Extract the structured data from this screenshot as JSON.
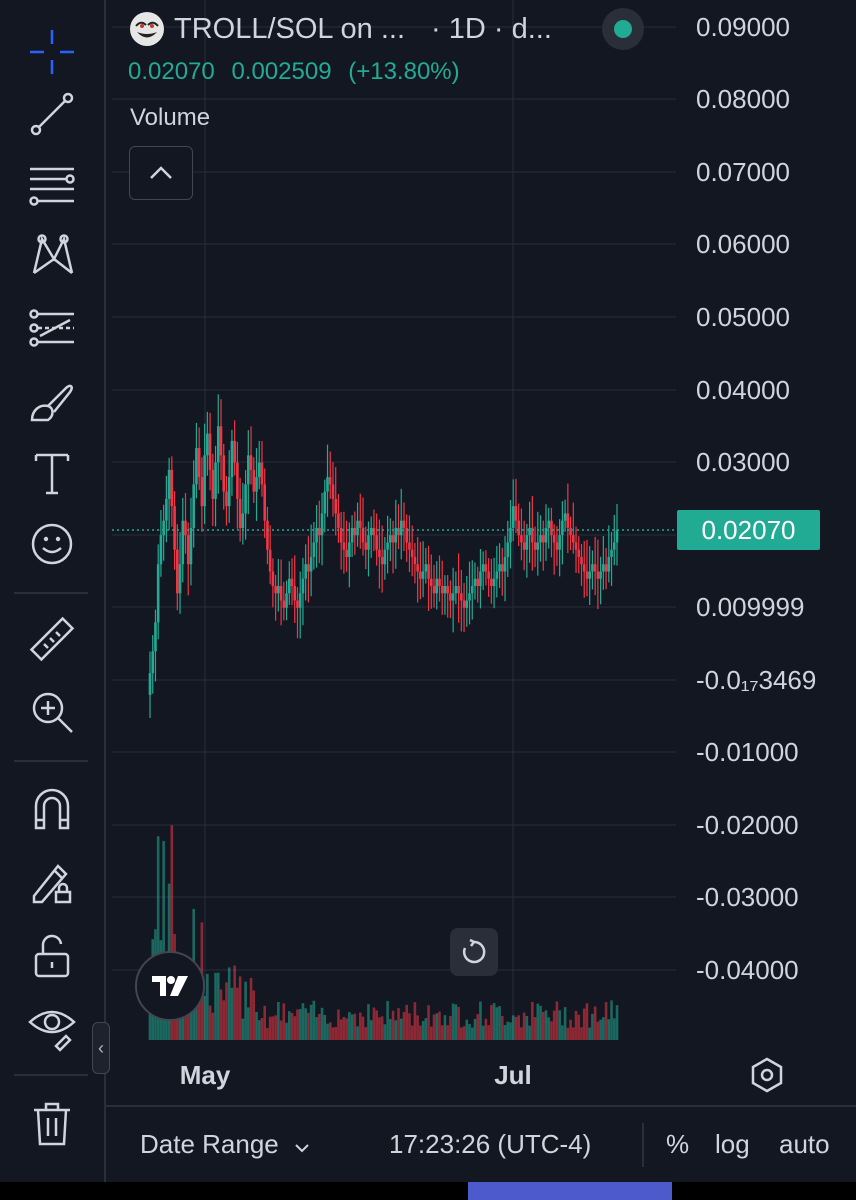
{
  "header": {
    "symbol": "TROLL/SOL on ...",
    "interval": "· 1D · d...",
    "close": "0.02070",
    "change": "0.002509",
    "change_pct": "(+13.80%)",
    "volume_label": "Volume"
  },
  "price_axis": {
    "ticks": [
      "0.09000",
      "0.08000",
      "0.07000",
      "0.06000",
      "0.05000",
      "0.04000",
      "0.03000",
      "0.009999",
      "-0.0₁₇3469",
      "-0.01000",
      "-0.02000",
      "-0.03000",
      "-0.04000"
    ],
    "last_price_label": "0.02070"
  },
  "time_axis": {
    "ticks": [
      "May",
      "Jul"
    ]
  },
  "bottom_bar": {
    "date_range": "Date Range",
    "time": "17:23:26 (UTC-4)",
    "percent": "%",
    "log": "log",
    "auto": "auto"
  },
  "toolbar": {
    "tools": [
      "crosshair-icon",
      "trend-line-icon",
      "fib-retracement-icon",
      "xabcd-pattern-icon",
      "forecast-icon",
      "brush-icon",
      "text-icon",
      "emoji-icon",
      "ruler-icon",
      "zoom-in-icon",
      "magnet-icon",
      "lock-drawing-icon",
      "lock-icon",
      "eye-icon",
      "trash-icon"
    ]
  },
  "colors": {
    "up": "#22ab94",
    "down": "#f23645",
    "bg": "#131722",
    "grid": "#2a2e39",
    "accent": "#2962ff"
  },
  "chart_data": {
    "type": "candlestick",
    "title": "TROLL/SOL",
    "interval": "1D",
    "ylim": [
      -0.045,
      0.092
    ],
    "x_ticks": [
      "May",
      "Jul"
    ],
    "last_price": 0.0207,
    "closes": [
      0.001,
      0.004,
      0.008,
      0.016,
      0.02,
      0.022,
      0.025,
      0.029,
      0.024,
      0.018,
      0.012,
      0.016,
      0.022,
      0.02,
      0.016,
      0.021,
      0.027,
      0.032,
      0.028,
      0.024,
      0.031,
      0.034,
      0.029,
      0.025,
      0.03,
      0.035,
      0.031,
      0.026,
      0.024,
      0.028,
      0.033,
      0.03,
      0.025,
      0.021,
      0.023,
      0.027,
      0.031,
      0.029,
      0.026,
      0.028,
      0.03,
      0.027,
      0.022,
      0.018,
      0.015,
      0.013,
      0.012,
      0.013,
      0.011,
      0.01,
      0.012,
      0.014,
      0.013,
      0.011,
      0.01,
      0.012,
      0.014,
      0.016,
      0.015,
      0.017,
      0.019,
      0.021,
      0.02,
      0.023,
      0.026,
      0.028,
      0.027,
      0.025,
      0.023,
      0.021,
      0.019,
      0.018,
      0.017,
      0.019,
      0.021,
      0.02,
      0.022,
      0.021,
      0.019,
      0.018,
      0.02,
      0.021,
      0.02,
      0.018,
      0.017,
      0.016,
      0.018,
      0.019,
      0.02,
      0.019,
      0.021,
      0.02,
      0.022,
      0.021,
      0.019,
      0.018,
      0.017,
      0.016,
      0.015,
      0.014,
      0.015,
      0.016,
      0.014,
      0.013,
      0.012,
      0.014,
      0.013,
      0.012,
      0.013,
      0.012,
      0.011,
      0.012,
      0.013,
      0.012,
      0.011,
      0.01,
      0.011,
      0.012,
      0.013,
      0.014,
      0.013,
      0.015,
      0.016,
      0.015,
      0.014,
      0.013,
      0.014,
      0.015,
      0.016,
      0.015,
      0.017,
      0.019,
      0.021,
      0.024,
      0.022,
      0.02,
      0.019,
      0.018,
      0.02,
      0.021,
      0.019,
      0.018,
      0.019,
      0.02,
      0.019,
      0.021,
      0.022,
      0.02,
      0.019,
      0.018,
      0.02,
      0.022,
      0.023,
      0.021,
      0.02,
      0.019,
      0.018,
      0.017,
      0.016,
      0.015,
      0.014,
      0.015,
      0.016,
      0.015,
      0.014,
      0.015,
      0.016,
      0.015,
      0.017,
      0.018,
      0.019,
      0.0207
    ],
    "volume": "relative bars, spike near early May"
  }
}
